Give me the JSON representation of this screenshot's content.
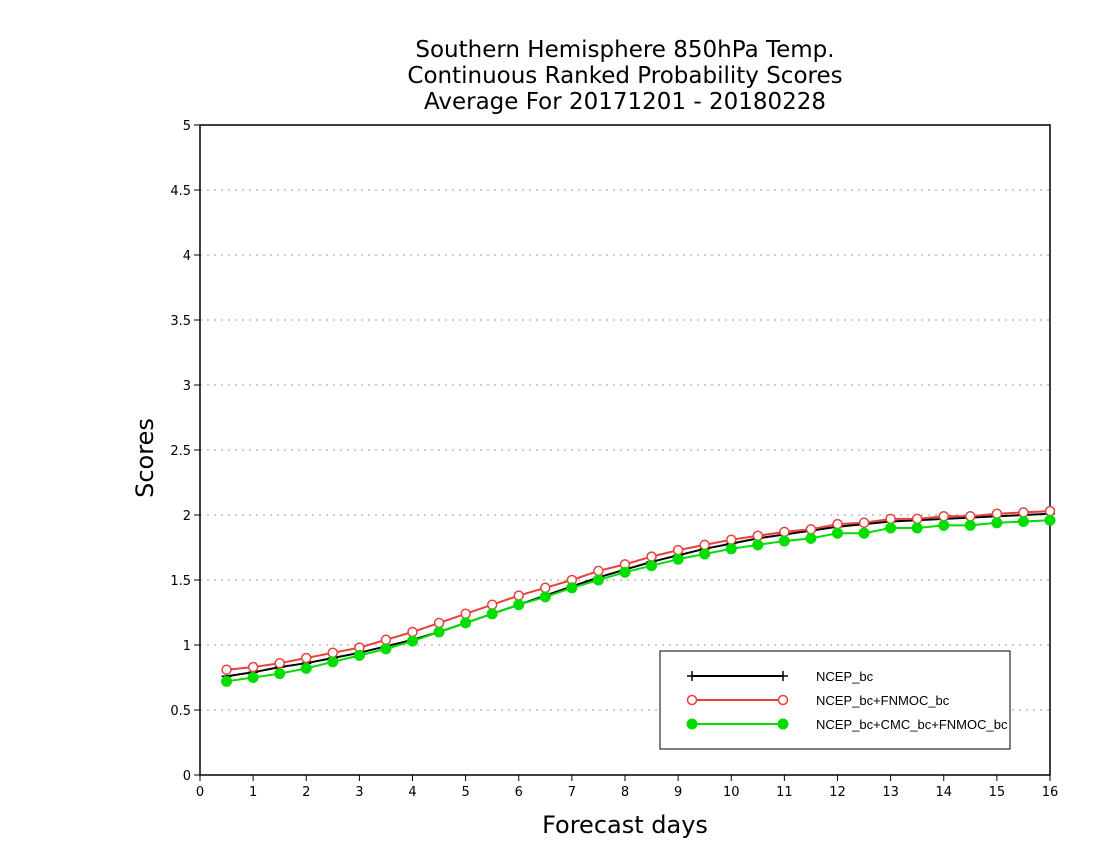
{
  "chart_data": {
    "type": "line",
    "title": [
      "Southern Hemisphere 850hPa Temp.",
      "Continuous Ranked Probability Scores",
      "Average For 20171201 - 20180228"
    ],
    "xlabel": "Forecast days",
    "ylabel": "Scores",
    "xlim": [
      0,
      16
    ],
    "ylim": [
      0,
      5
    ],
    "xticks": [
      "0",
      "1",
      "2",
      "3",
      "4",
      "5",
      "6",
      "7",
      "8",
      "9",
      "10",
      "11",
      "12",
      "13",
      "14",
      "15",
      "16"
    ],
    "yticks": [
      "0",
      "0.5",
      "1",
      "1.5",
      "2",
      "2.5",
      "3",
      "3.5",
      "4",
      "4.5",
      "5"
    ],
    "grid": "horizontal dotted",
    "legend_position": "bottom-right",
    "x": [
      0.5,
      1,
      1.5,
      2,
      2.5,
      3,
      3.5,
      4,
      4.5,
      5,
      5.5,
      6,
      6.5,
      7,
      7.5,
      8,
      8.5,
      9,
      9.5,
      10,
      10.5,
      11,
      11.5,
      12,
      12.5,
      13,
      13.5,
      14,
      14.5,
      15,
      15.5,
      16
    ],
    "series": [
      {
        "name": "NCEP_bc",
        "color": "#000000",
        "marker": "plus",
        "values": [
          0.76,
          0.79,
          0.83,
          0.86,
          0.9,
          0.94,
          0.99,
          1.04,
          1.1,
          1.17,
          1.24,
          1.31,
          1.38,
          1.45,
          1.52,
          1.58,
          1.64,
          1.69,
          1.74,
          1.78,
          1.82,
          1.85,
          1.88,
          1.91,
          1.93,
          1.95,
          1.96,
          1.97,
          1.98,
          1.99,
          2.0,
          2.01
        ]
      },
      {
        "name": "NCEP_bc+FNMOC_bc",
        "color": "#e8413c",
        "marker": "open-circle",
        "values": [
          0.81,
          0.83,
          0.86,
          0.9,
          0.94,
          0.98,
          1.04,
          1.1,
          1.17,
          1.24,
          1.31,
          1.38,
          1.44,
          1.5,
          1.57,
          1.62,
          1.68,
          1.73,
          1.77,
          1.81,
          1.84,
          1.87,
          1.89,
          1.93,
          1.94,
          1.97,
          1.97,
          1.99,
          1.99,
          2.01,
          2.02,
          2.03
        ]
      },
      {
        "name": "NCEP_bc+CMC_bc+FNMOC_bc",
        "color": "#00dd00",
        "marker": "filled-circle",
        "values": [
          0.72,
          0.75,
          0.78,
          0.82,
          0.87,
          0.92,
          0.97,
          1.03,
          1.1,
          1.17,
          1.24,
          1.31,
          1.37,
          1.44,
          1.5,
          1.56,
          1.61,
          1.66,
          1.7,
          1.74,
          1.77,
          1.8,
          1.82,
          1.86,
          1.86,
          1.9,
          1.9,
          1.92,
          1.92,
          1.94,
          1.95,
          1.96
        ]
      }
    ]
  }
}
